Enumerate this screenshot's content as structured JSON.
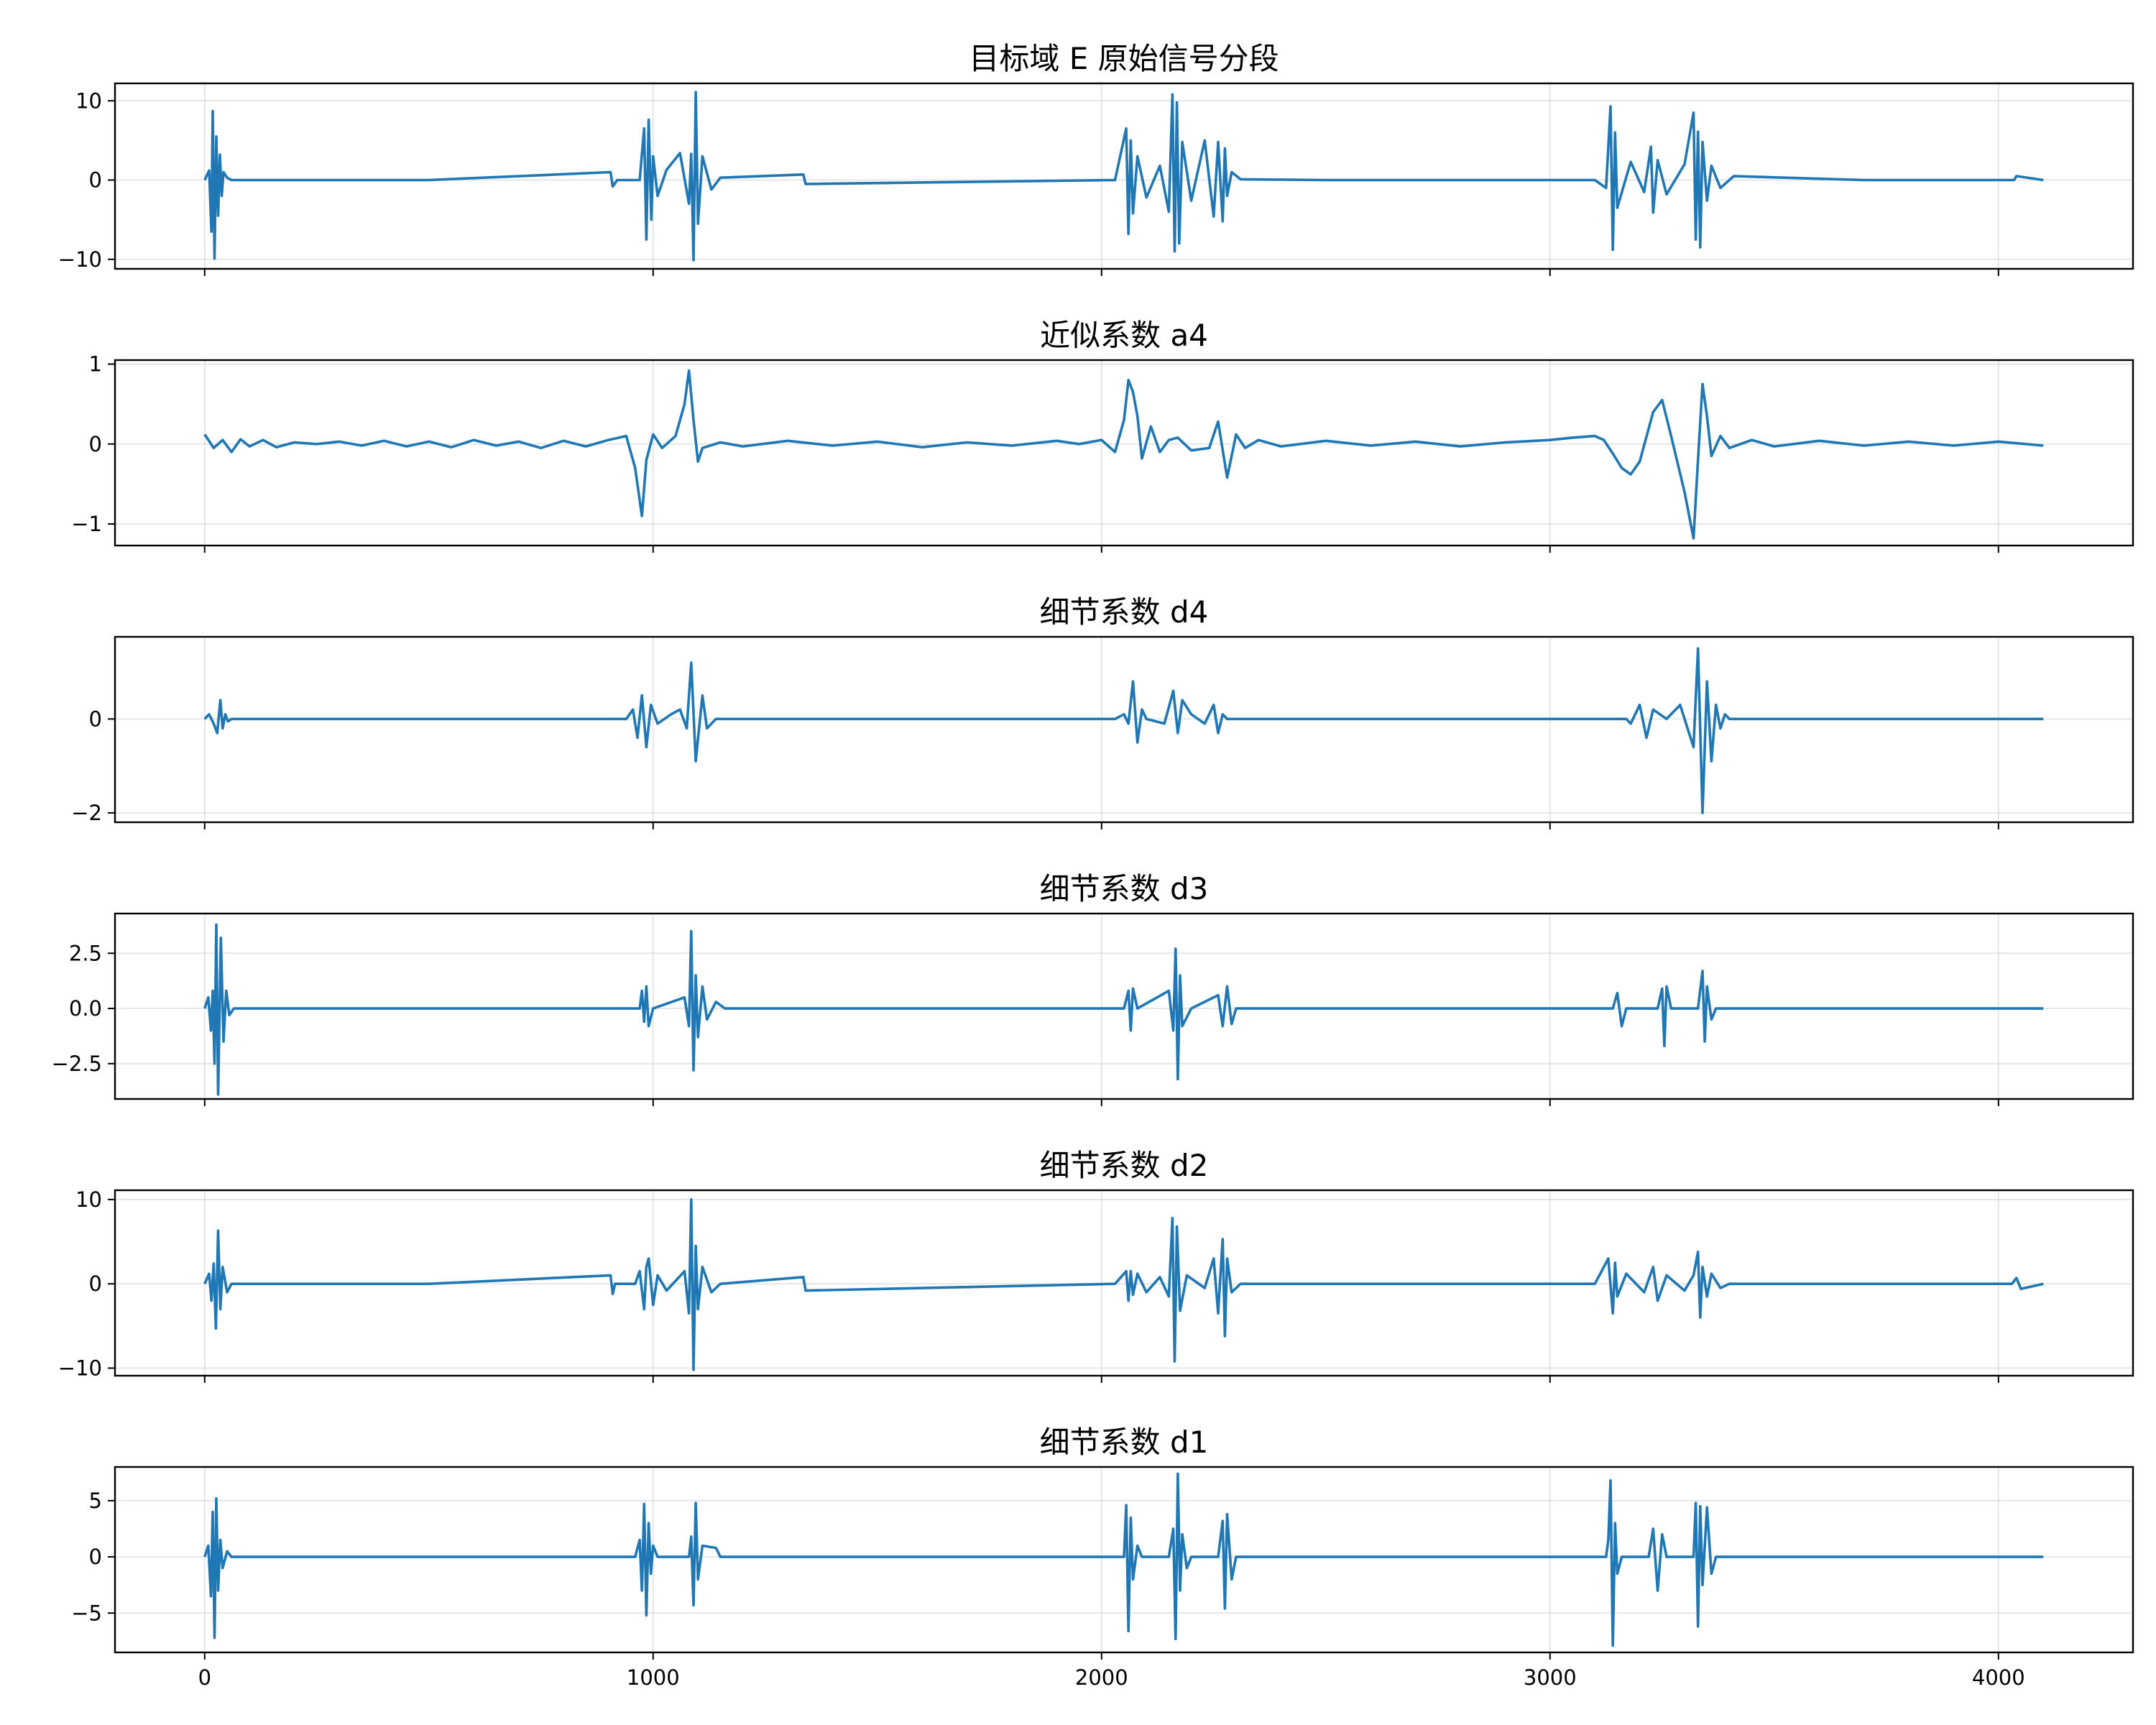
{
  "chart_data": [
    {
      "type": "line",
      "title": "目标域 E 原始信号分段",
      "color": "#1f77b4",
      "xlim": [
        -200,
        4300
      ],
      "ylim": [
        -11.2,
        12.2
      ],
      "xticks": [
        0,
        1000,
        2000,
        3000,
        4000
      ],
      "xtick_labels": [
        "",
        "",
        "",
        "",
        ""
      ],
      "yticks": [
        -10,
        0,
        10
      ],
      "ytick_labels": [
        "−10",
        "0",
        "10"
      ],
      "grid": true,
      "series": [
        {
          "x": [
            0,
            10,
            15,
            18,
            22,
            26,
            30,
            34,
            38,
            42,
            50,
            60,
            500,
            905,
            910,
            920,
            970,
            980,
            985,
            990,
            996,
            1000,
            1010,
            1030,
            1060,
            1080,
            1085,
            1090,
            1095,
            1100,
            1110,
            1130,
            1150,
            1335,
            1340,
            2030,
            2055,
            2060,
            2065,
            2070,
            2080,
            2100,
            2130,
            2150,
            2158,
            2163,
            2168,
            2173,
            2180,
            2200,
            2230,
            2250,
            2260,
            2270,
            2275,
            2280,
            2290,
            2310,
            2500,
            3100,
            3125,
            3135,
            3140,
            3145,
            3150,
            3180,
            3210,
            3225,
            3230,
            3240,
            3260,
            3300,
            3320,
            3325,
            3330,
            3335,
            3340,
            3350,
            3360,
            3380,
            3410,
            3700,
            4035,
            4040,
            4100
          ],
          "y": [
            0,
            1.2,
            -6.5,
            8.7,
            -9.9,
            5.5,
            -4.5,
            3.2,
            -2.0,
            1.0,
            0.3,
            0,
            0,
            1.0,
            -0.8,
            0,
            0,
            6.5,
            -7.5,
            7.6,
            -5.0,
            3.0,
            -2.0,
            1.3,
            3.4,
            -3.0,
            3.3,
            -10.1,
            11.1,
            -5.5,
            3.0,
            -1.2,
            0.3,
            0.7,
            -0.5,
            0,
            6.5,
            -6.8,
            5.0,
            -4.2,
            3.0,
            -2.2,
            1.8,
            -4.0,
            10.8,
            -9.0,
            9.8,
            -8.0,
            4.8,
            -2.6,
            5.0,
            -4.6,
            4.8,
            -5.2,
            4.0,
            -2.0,
            1.0,
            0.1,
            0,
            0,
            -1.0,
            9.3,
            -8.8,
            6.0,
            -3.5,
            2.3,
            -1.5,
            4.2,
            -4.1,
            2.5,
            -1.8,
            2.0,
            8.5,
            -7.5,
            6.1,
            -8.5,
            4.8,
            -2.6,
            1.8,
            -1.0,
            0.5,
            0,
            0,
            0.5,
            0
          ]
        }
      ]
    },
    {
      "type": "line",
      "title": "近似系数 a4",
      "color": "#1f77b4",
      "xlim": [
        -200,
        4300
      ],
      "ylim": [
        -1.27,
        1.05
      ],
      "xticks": [
        0,
        1000,
        2000,
        3000,
        4000
      ],
      "xtick_labels": [
        "",
        "",
        "",
        "",
        ""
      ],
      "yticks": [
        -1,
        0,
        1
      ],
      "ytick_labels": [
        "−1",
        "0",
        "1"
      ],
      "grid": true,
      "series": [
        {
          "x": [
            0,
            20,
            40,
            60,
            80,
            100,
            130,
            160,
            200,
            250,
            300,
            350,
            400,
            450,
            500,
            550,
            600,
            650,
            700,
            750,
            800,
            850,
            900,
            940,
            960,
            975,
            985,
            1000,
            1020,
            1050,
            1070,
            1080,
            1090,
            1100,
            1110,
            1150,
            1200,
            1300,
            1400,
            1500,
            1600,
            1700,
            1800,
            1900,
            1950,
            2000,
            2030,
            2050,
            2060,
            2070,
            2080,
            2090,
            2110,
            2130,
            2150,
            2170,
            2200,
            2240,
            2260,
            2280,
            2300,
            2320,
            2350,
            2400,
            2500,
            2600,
            2700,
            2800,
            2900,
            3000,
            3050,
            3100,
            3120,
            3140,
            3160,
            3180,
            3200,
            3230,
            3250,
            3270,
            3300,
            3320,
            3330,
            3340,
            3350,
            3360,
            3380,
            3400,
            3450,
            3500,
            3600,
            3700,
            3800,
            3900,
            4000,
            4100
          ],
          "y": [
            0.12,
            -0.05,
            0.05,
            -0.1,
            0.06,
            -0.03,
            0.05,
            -0.04,
            0.02,
            0.0,
            0.03,
            -0.02,
            0.04,
            -0.03,
            0.03,
            -0.04,
            0.05,
            -0.02,
            0.03,
            -0.05,
            0.04,
            -0.03,
            0.05,
            0.1,
            -0.3,
            -0.9,
            -0.2,
            0.12,
            -0.05,
            0.1,
            0.5,
            0.92,
            0.3,
            -0.22,
            -0.05,
            0.02,
            -0.03,
            0.04,
            -0.02,
            0.03,
            -0.04,
            0.02,
            -0.02,
            0.04,
            0.0,
            0.05,
            -0.1,
            0.3,
            0.8,
            0.65,
            0.35,
            -0.18,
            0.22,
            -0.1,
            0.05,
            0.08,
            -0.08,
            -0.05,
            0.28,
            -0.42,
            0.12,
            -0.05,
            0.05,
            -0.03,
            0.04,
            -0.02,
            0.03,
            -0.03,
            0.02,
            0.05,
            0.08,
            0.1,
            0.05,
            -0.12,
            -0.3,
            -0.38,
            -0.22,
            0.4,
            0.55,
            0.1,
            -0.6,
            -1.18,
            -0.2,
            0.75,
            0.35,
            -0.15,
            0.1,
            -0.05,
            0.05,
            -0.03,
            0.04,
            -0.02,
            0.03,
            -0.02,
            0.03,
            -0.02
          ]
        }
      ]
    },
    {
      "type": "line",
      "title": "细节系数 d4",
      "color": "#1f77b4",
      "xlim": [
        -200,
        4300
      ],
      "ylim": [
        -2.2,
        1.75
      ],
      "xticks": [
        0,
        1000,
        2000,
        3000,
        4000
      ],
      "xtick_labels": [
        "",
        "",
        "",
        "",
        ""
      ],
      "yticks": [
        -2,
        0
      ],
      "ytick_labels": [
        "−2",
        "0"
      ],
      "grid": true,
      "series": [
        {
          "x": [
            0,
            10,
            20,
            28,
            35,
            40,
            46,
            52,
            60,
            500,
            940,
            955,
            965,
            975,
            985,
            995,
            1010,
            1040,
            1060,
            1075,
            1085,
            1095,
            1110,
            1120,
            1140,
            1500,
            2030,
            2050,
            2060,
            2070,
            2080,
            2090,
            2100,
            2140,
            2160,
            2170,
            2180,
            2200,
            2230,
            2250,
            2260,
            2270,
            2280,
            2290,
            2300,
            2700,
            3170,
            3180,
            3200,
            3215,
            3230,
            3260,
            3290,
            3320,
            3330,
            3340,
            3350,
            3360,
            3370,
            3380,
            3390,
            3400,
            3800,
            4100
          ],
          "y": [
            0,
            0.1,
            -0.1,
            -0.3,
            0.4,
            -0.2,
            0.1,
            -0.05,
            0,
            0,
            0,
            0.2,
            -0.4,
            0.5,
            -0.6,
            0.3,
            -0.1,
            0.1,
            0.2,
            -0.2,
            1.2,
            -0.9,
            0.5,
            -0.2,
            0,
            0,
            0,
            0.1,
            -0.1,
            0.8,
            -0.5,
            0.2,
            0.0,
            -0.1,
            0.6,
            -0.3,
            0.4,
            0.1,
            -0.1,
            0.3,
            -0.3,
            0.1,
            0,
            0,
            0,
            0,
            0,
            -0.1,
            0.3,
            -0.4,
            0.2,
            0,
            0.3,
            -0.6,
            1.5,
            -2.0,
            0.8,
            -0.9,
            0.3,
            -0.2,
            0.1,
            0,
            0,
            0
          ]
        }
      ]
    },
    {
      "type": "line",
      "title": "细节系数 d3",
      "color": "#1f77b4",
      "xlim": [
        -200,
        4300
      ],
      "ylim": [
        -4.1,
        4.3
      ],
      "xticks": [
        0,
        1000,
        2000,
        3000,
        4000
      ],
      "xtick_labels": [
        "",
        "",
        "",
        "",
        ""
      ],
      "yticks": [
        -2.5,
        0,
        2.5
      ],
      "ytick_labels": [
        "−2.5",
        "0.0",
        "2.5"
      ],
      "grid": true,
      "series": [
        {
          "x": [
            0,
            8,
            14,
            18,
            22,
            26,
            30,
            36,
            42,
            48,
            55,
            65,
            500,
            970,
            975,
            980,
            985,
            990,
            1000,
            1070,
            1080,
            1085,
            1090,
            1095,
            1100,
            1110,
            1120,
            1140,
            1160,
            1500,
            2050,
            2060,
            2065,
            2070,
            2080,
            2150,
            2160,
            2165,
            2170,
            2175,
            2180,
            2200,
            2260,
            2270,
            2280,
            2290,
            2300,
            2700,
            3140,
            3150,
            3160,
            3170,
            3240,
            3250,
            3255,
            3260,
            3270,
            3330,
            3340,
            3345,
            3350,
            3360,
            3370,
            3700,
            4100
          ],
          "y": [
            0,
            0.5,
            -1.0,
            0.8,
            -2.5,
            3.8,
            -3.9,
            3.2,
            -1.5,
            0.8,
            -0.3,
            0,
            0,
            0,
            0.8,
            -0.6,
            1.0,
            -0.8,
            0,
            0.5,
            -0.8,
            3.5,
            -2.8,
            1.5,
            -1.3,
            1.0,
            -0.5,
            0.3,
            0,
            0,
            0,
            0.8,
            -1.0,
            0.9,
            0,
            0.8,
            -1.0,
            2.7,
            -3.2,
            1.5,
            -0.8,
            0,
            0.6,
            -0.8,
            1.0,
            -0.7,
            0,
            0,
            0,
            0.7,
            -0.8,
            0,
            0,
            0.9,
            -1.7,
            1.0,
            0,
            0,
            1.7,
            -1.5,
            1.0,
            -0.5,
            0,
            0,
            0
          ]
        }
      ]
    },
    {
      "type": "line",
      "title": "细节系数 d2",
      "color": "#1f77b4",
      "xlim": [
        -200,
        4300
      ],
      "ylim": [
        -10.9,
        11.1
      ],
      "xticks": [
        0,
        1000,
        2000,
        3000,
        4000
      ],
      "xtick_labels": [
        "",
        "",
        "",
        "",
        ""
      ],
      "yticks": [
        -10,
        0,
        10
      ],
      "ytick_labels": [
        "−10",
        "0",
        "10"
      ],
      "grid": true,
      "series": [
        {
          "x": [
            0,
            10,
            15,
            20,
            25,
            30,
            35,
            40,
            50,
            60,
            500,
            905,
            910,
            915,
            960,
            970,
            980,
            985,
            990,
            1000,
            1010,
            1030,
            1070,
            1080,
            1085,
            1090,
            1095,
            1100,
            1110,
            1130,
            1150,
            1335,
            1340,
            2030,
            2055,
            2060,
            2065,
            2070,
            2080,
            2100,
            2130,
            2150,
            2158,
            2163,
            2168,
            2175,
            2190,
            2230,
            2250,
            2260,
            2270,
            2275,
            2280,
            2290,
            2310,
            2500,
            3100,
            3130,
            3140,
            3145,
            3150,
            3170,
            3210,
            3230,
            3240,
            3260,
            3300,
            3320,
            3330,
            3335,
            3340,
            3350,
            3360,
            3380,
            3400,
            3700,
            4030,
            4040,
            4050,
            4100
          ],
          "y": [
            0,
            1.2,
            -2.0,
            2.4,
            -5.3,
            6.3,
            -3.0,
            2.0,
            -1.0,
            0,
            0,
            1.0,
            -1.2,
            0,
            0,
            1.5,
            -3.0,
            2.0,
            3.0,
            -2.5,
            1.0,
            -0.8,
            1.5,
            -3.5,
            10.0,
            -10.2,
            4.5,
            -3.0,
            2.0,
            -1.0,
            0,
            0.8,
            -0.8,
            0,
            1.5,
            -2.0,
            1.5,
            -1.3,
            1.2,
            -1.0,
            0.8,
            -1.5,
            7.8,
            -9.2,
            6.8,
            -3.2,
            1.0,
            -0.5,
            3.0,
            -3.5,
            5.3,
            -6.2,
            3.0,
            -1.0,
            0,
            0,
            0,
            3.0,
            -3.5,
            2.5,
            -1.5,
            1.2,
            -1.0,
            2.0,
            -2.0,
            1.0,
            -0.8,
            1.0,
            3.8,
            -4.0,
            2.0,
            -1.5,
            1.2,
            -0.5,
            0,
            0,
            0,
            0.7,
            -0.6,
            0
          ]
        }
      ]
    },
    {
      "type": "line",
      "title": "细节系数 d1",
      "color": "#1f77b4",
      "xlim": [
        -200,
        4300
      ],
      "ylim": [
        -8.5,
        8.0
      ],
      "xticks": [
        0,
        1000,
        2000,
        3000,
        4000
      ],
      "xtick_labels": [
        "0",
        "1000",
        "2000",
        "3000",
        "4000"
      ],
      "yticks": [
        -5,
        0,
        5
      ],
      "ytick_labels": [
        "−5",
        "0",
        "5"
      ],
      "grid": true,
      "series": [
        {
          "x": [
            0,
            8,
            14,
            18,
            22,
            26,
            30,
            35,
            40,
            50,
            60,
            500,
            960,
            970,
            975,
            980,
            985,
            990,
            995,
            1000,
            1010,
            1080,
            1085,
            1090,
            1095,
            1100,
            1110,
            1140,
            1150,
            1500,
            2050,
            2055,
            2060,
            2065,
            2070,
            2080,
            2090,
            2150,
            2160,
            2165,
            2170,
            2175,
            2180,
            2190,
            2200,
            2260,
            2270,
            2275,
            2280,
            2290,
            2300,
            2700,
            3125,
            3130,
            3135,
            3140,
            3145,
            3150,
            3160,
            3220,
            3230,
            3240,
            3250,
            3260,
            3320,
            3325,
            3330,
            3335,
            3340,
            3350,
            3360,
            3370,
            3700,
            4100
          ],
          "y": [
            0,
            1.0,
            -3.5,
            4.0,
            -7.2,
            5.2,
            -3.0,
            1.5,
            -1.0,
            0.5,
            0,
            0,
            0,
            1.5,
            -3.0,
            4.7,
            -5.2,
            3.0,
            -1.5,
            1.0,
            0,
            0,
            1.8,
            -4.3,
            4.8,
            -2.0,
            1.0,
            0.8,
            0,
            0,
            0,
            4.6,
            -6.6,
            3.5,
            -2.0,
            1.0,
            0,
            0,
            2.5,
            -7.3,
            7.4,
            -3.0,
            2.0,
            -1.0,
            0,
            0,
            3.2,
            -4.6,
            3.8,
            -2.0,
            0,
            0,
            0,
            1.5,
            6.8,
            -7.9,
            3.0,
            -1.5,
            0,
            0,
            2.5,
            -3.0,
            2.0,
            0,
            0,
            4.8,
            -6.2,
            4.5,
            -2.5,
            4.4,
            -1.5,
            0,
            0,
            0
          ]
        }
      ]
    }
  ]
}
